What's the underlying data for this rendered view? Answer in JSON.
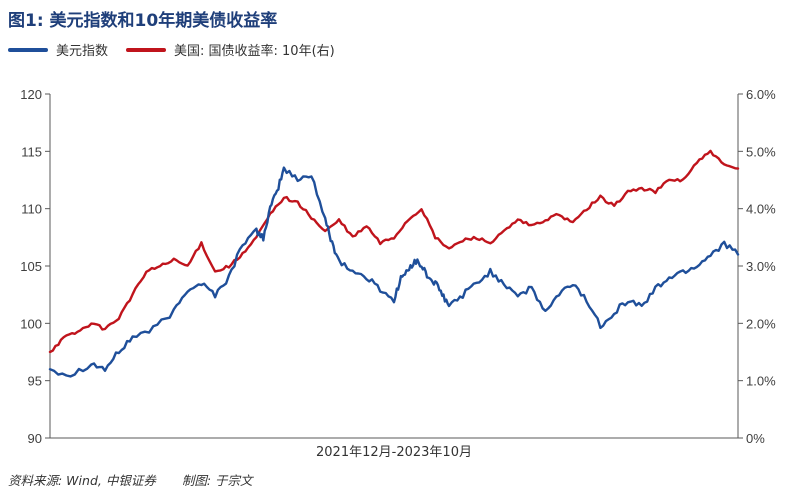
{
  "title": "图1: 美元指数和10年期美债收益率",
  "legend": [
    {
      "label": "美元指数",
      "color": "#1f4f9a"
    },
    {
      "label": "美国: 国债收益率: 10年(右)",
      "color": "#c0141c"
    }
  ],
  "footer": {
    "source": "资料来源: Wind, 中银证券",
    "maker": "制图: 于宗文"
  },
  "chart_data": {
    "type": "line",
    "xlabel": "2021年12月-2023年10月",
    "y_left": {
      "range": [
        90,
        120
      ],
      "ticks": [
        "120",
        "115",
        "110",
        "105",
        "100",
        "95",
        "90"
      ],
      "values": [
        120,
        115,
        110,
        105,
        100,
        95,
        90
      ]
    },
    "y_right": {
      "range": [
        0,
        6
      ],
      "ticks": [
        "6.0%",
        "5.0%",
        "4.0%",
        "3.0%",
        "2.0%",
        "1.0%",
        "0%"
      ],
      "values": [
        6,
        5,
        4,
        3,
        2,
        1,
        0
      ]
    },
    "x_steps": 100,
    "series": [
      {
        "name": "美元指数",
        "axis": "left",
        "color": "#1f4f9a",
        "x": [
          0,
          3,
          6,
          8,
          10,
          12,
          15,
          18,
          20,
          22,
          24,
          26,
          28,
          30,
          31,
          32,
          33,
          34,
          36,
          38,
          40,
          41,
          42,
          44,
          46,
          48,
          50,
          51,
          52,
          53,
          54,
          55,
          56,
          57,
          58,
          60,
          62,
          64,
          66,
          68,
          70,
          72,
          74,
          76,
          78,
          80,
          82,
          84,
          86,
          88,
          90,
          92,
          94,
          96,
          98,
          100
        ],
        "values": [
          96.0,
          95.5,
          96.5,
          96.0,
          97.5,
          98.8,
          99.5,
          101.0,
          103.0,
          103.5,
          102.5,
          104.0,
          107.0,
          108.0,
          107.5,
          110.0,
          111.5,
          113.5,
          112.5,
          113.0,
          109.0,
          107.0,
          105.5,
          104.5,
          104.0,
          103.0,
          102.0,
          104.0,
          104.5,
          105.5,
          105.0,
          104.0,
          103.5,
          102.5,
          101.5,
          102.5,
          103.5,
          104.5,
          103.5,
          102.5,
          103.0,
          101.0,
          102.5,
          103.5,
          102.0,
          99.8,
          101.0,
          102.0,
          101.5,
          103.0,
          104.0,
          104.5,
          105.0,
          106.0,
          107.0,
          106.0
        ]
      },
      {
        "name": "美国: 国债收益率: 10年(右)",
        "axis": "right",
        "color": "#c0141c",
        "x": [
          0,
          2,
          4,
          6,
          8,
          10,
          12,
          14,
          16,
          18,
          20,
          22,
          24,
          26,
          28,
          30,
          32,
          34,
          36,
          38,
          40,
          42,
          44,
          46,
          48,
          50,
          52,
          54,
          56,
          58,
          60,
          62,
          64,
          66,
          68,
          70,
          72,
          74,
          76,
          78,
          80,
          82,
          84,
          86,
          88,
          90,
          92,
          94,
          96,
          98,
          100
        ],
        "values": [
          1.5,
          1.75,
          1.85,
          2.0,
          1.9,
          2.1,
          2.5,
          2.9,
          3.0,
          3.1,
          3.0,
          3.4,
          2.9,
          3.0,
          3.2,
          3.5,
          3.9,
          4.2,
          4.1,
          3.85,
          3.6,
          3.8,
          3.5,
          3.7,
          3.4,
          3.5,
          3.8,
          4.0,
          3.5,
          3.3,
          3.45,
          3.5,
          3.4,
          3.6,
          3.8,
          3.7,
          3.8,
          3.9,
          3.75,
          4.0,
          4.2,
          4.05,
          4.3,
          4.35,
          4.3,
          4.5,
          4.5,
          4.8,
          5.0,
          4.75,
          4.7
        ]
      }
    ]
  }
}
